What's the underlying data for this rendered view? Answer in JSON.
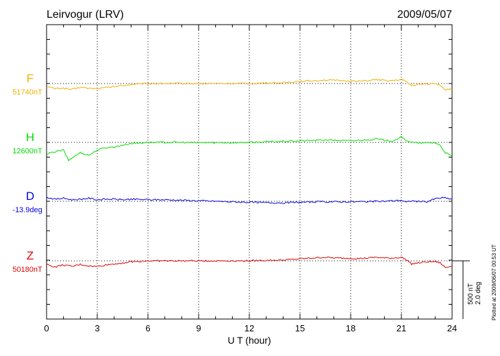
{
  "chart_data": {
    "type": "line",
    "title": "Leirvogur (LRV)",
    "date": "2009/05/07",
    "xlabel": "U T (hour)",
    "xlim": [
      0,
      24
    ],
    "xticks": [
      "0",
      "3",
      "6",
      "9",
      "12",
      "15",
      "18",
      "21",
      "24"
    ],
    "grid": true,
    "scale_bar": {
      "line1": "500 nT",
      "line2": "2.0 deg"
    },
    "plotted_note": "Plotted at 2009/06/07 00:53 UT",
    "series": [
      {
        "name": "F",
        "baseline_label": "51740nT",
        "color": "#f0b000",
        "points": [
          [
            0,
            -60
          ],
          [
            0.5,
            -100
          ],
          [
            1,
            -90
          ],
          [
            1.5,
            -120
          ],
          [
            2,
            -70
          ],
          [
            2.5,
            -95
          ],
          [
            3,
            -100
          ],
          [
            3.5,
            -80
          ],
          [
            4,
            -60
          ],
          [
            4.5,
            -40
          ],
          [
            5,
            -20
          ],
          [
            5.5,
            -10
          ],
          [
            6,
            0
          ],
          [
            7,
            0
          ],
          [
            8,
            0
          ],
          [
            9,
            0
          ],
          [
            10,
            0
          ],
          [
            11,
            0
          ],
          [
            12,
            0
          ],
          [
            13,
            10
          ],
          [
            14,
            15
          ],
          [
            14.5,
            30
          ],
          [
            15,
            45
          ],
          [
            15.5,
            50
          ],
          [
            16,
            60
          ],
          [
            16.5,
            70
          ],
          [
            17,
            60
          ],
          [
            17.5,
            55
          ],
          [
            18,
            50
          ],
          [
            18.5,
            45
          ],
          [
            19,
            55
          ],
          [
            19.5,
            75
          ],
          [
            20,
            60
          ],
          [
            20.5,
            55
          ],
          [
            21,
            80
          ],
          [
            21.3,
            30
          ],
          [
            21.6,
            -40
          ],
          [
            22,
            -20
          ],
          [
            22.5,
            -5
          ],
          [
            23,
            0
          ],
          [
            23.3,
            -30
          ],
          [
            23.6,
            -120
          ],
          [
            24,
            -100
          ]
        ]
      },
      {
        "name": "H",
        "baseline_label": "12600nT",
        "color": "#00dd00",
        "points": [
          [
            0,
            -230
          ],
          [
            0.5,
            -180
          ],
          [
            1,
            -150
          ],
          [
            1.3,
            -350
          ],
          [
            1.6,
            -280
          ],
          [
            2,
            -200
          ],
          [
            2.5,
            -250
          ],
          [
            3,
            -150
          ],
          [
            3.5,
            -100
          ],
          [
            4,
            -90
          ],
          [
            4.5,
            -50
          ],
          [
            5,
            -20
          ],
          [
            6,
            0
          ],
          [
            7,
            0
          ],
          [
            8,
            0
          ],
          [
            9,
            -5
          ],
          [
            10,
            -5
          ],
          [
            11,
            -5
          ],
          [
            12,
            0
          ],
          [
            13,
            10
          ],
          [
            14,
            20
          ],
          [
            15,
            30
          ],
          [
            16,
            40
          ],
          [
            16.5,
            50
          ],
          [
            17,
            40
          ],
          [
            18,
            30
          ],
          [
            18.5,
            40
          ],
          [
            19,
            50
          ],
          [
            19.5,
            70
          ],
          [
            20,
            40
          ],
          [
            20.5,
            30
          ],
          [
            21,
            100
          ],
          [
            21.3,
            40
          ],
          [
            21.6,
            0
          ],
          [
            22,
            -10
          ],
          [
            22.5,
            -10
          ],
          [
            23,
            -5
          ],
          [
            23.3,
            -60
          ],
          [
            23.6,
            -200
          ],
          [
            24,
            -270
          ]
        ]
      },
      {
        "name": "D",
        "baseline_label": "-13.9deg",
        "color": "#0000dd",
        "points": [
          [
            0,
            80
          ],
          [
            0.5,
            40
          ],
          [
            1,
            60
          ],
          [
            1.5,
            30
          ],
          [
            2,
            40
          ],
          [
            2.5,
            60
          ],
          [
            3,
            30
          ],
          [
            3.5,
            40
          ],
          [
            4,
            40
          ],
          [
            4.5,
            30
          ],
          [
            5,
            40
          ],
          [
            6,
            30
          ],
          [
            7,
            30
          ],
          [
            8,
            20
          ],
          [
            9,
            10
          ],
          [
            10,
            0
          ],
          [
            11,
            -10
          ],
          [
            12,
            -20
          ],
          [
            13,
            -25
          ],
          [
            14,
            -30
          ],
          [
            15,
            -20
          ],
          [
            16,
            -10
          ],
          [
            17,
            -10
          ],
          [
            18,
            -10
          ],
          [
            19,
            -5
          ],
          [
            20,
            0
          ],
          [
            21,
            20
          ],
          [
            21.3,
            -20
          ],
          [
            21.6,
            10
          ],
          [
            22,
            -5
          ],
          [
            22.5,
            -10
          ],
          [
            23,
            50
          ],
          [
            23.5,
            70
          ],
          [
            24,
            40
          ]
        ]
      },
      {
        "name": "Z",
        "baseline_label": "50180nT",
        "color": "#dd0000",
        "points": [
          [
            0,
            -70
          ],
          [
            0.5,
            -120
          ],
          [
            1,
            -80
          ],
          [
            1.5,
            -110
          ],
          [
            2,
            -70
          ],
          [
            2.5,
            -100
          ],
          [
            3,
            -110
          ],
          [
            3.5,
            -80
          ],
          [
            4,
            -60
          ],
          [
            4.5,
            -40
          ],
          [
            5,
            -20
          ],
          [
            5.5,
            -10
          ],
          [
            6,
            0
          ],
          [
            7,
            0
          ],
          [
            8,
            0
          ],
          [
            9,
            0
          ],
          [
            10,
            0
          ],
          [
            11,
            0
          ],
          [
            12,
            0
          ],
          [
            13,
            10
          ],
          [
            14,
            15
          ],
          [
            15,
            40
          ],
          [
            16,
            60
          ],
          [
            16.5,
            70
          ],
          [
            17,
            55
          ],
          [
            18,
            50
          ],
          [
            18.5,
            45
          ],
          [
            19,
            55
          ],
          [
            19.5,
            70
          ],
          [
            20,
            55
          ],
          [
            20.5,
            55
          ],
          [
            21,
            70
          ],
          [
            21.3,
            20
          ],
          [
            21.6,
            -60
          ],
          [
            22,
            -40
          ],
          [
            22.5,
            -20
          ],
          [
            23,
            -15
          ],
          [
            23.3,
            -40
          ],
          [
            23.6,
            -130
          ],
          [
            24,
            -100
          ]
        ]
      }
    ]
  }
}
